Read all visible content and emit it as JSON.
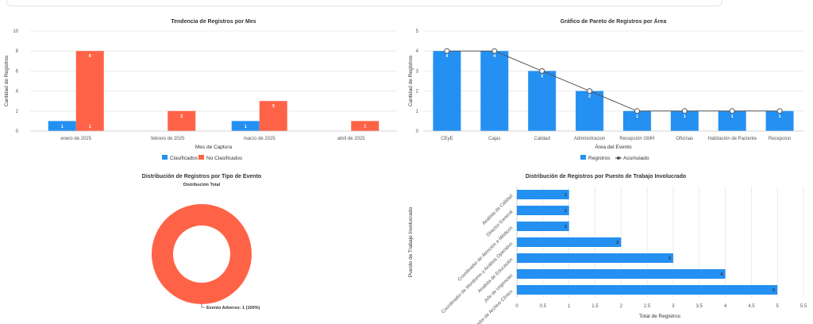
{
  "colors": {
    "clasificados": "#2490f2",
    "no_clasificados": "#ff6347",
    "registros": "#2490f2",
    "acumulado": "#555555",
    "pie": "#ff6347",
    "grid": "#e6e6e6",
    "axis": "#666666"
  },
  "chart_data": [
    {
      "type": "bar",
      "title": "Tendencia de Registros por Mes",
      "xlabel": "Mes de Captura",
      "ylabel": "Cantidad de Registros",
      "ylim": [
        0,
        10
      ],
      "yticks": [
        "0",
        "2",
        "4",
        "6",
        "8",
        "10"
      ],
      "categories": [
        "enero de 2025",
        "febrero de 2025",
        "marzo de 2025",
        "abril de 2025"
      ],
      "series": [
        {
          "name": "Clasificados",
          "values": [
            1,
            0,
            1,
            0
          ]
        },
        {
          "name": "No Clasificados",
          "values": [
            8,
            2,
            3,
            1
          ]
        }
      ],
      "legend": "bottom"
    },
    {
      "type": "bar",
      "title": "Gráfico de Pareto de Registros por Área",
      "xlabel": "Área del Evento",
      "ylabel": "Cantidad de Registros",
      "ylim": [
        0,
        5
      ],
      "yticks": [
        "0",
        "1",
        "2",
        "3",
        "4",
        "5"
      ],
      "categories": [
        "CEyE",
        "Cajas",
        "Calidad",
        "Administracion",
        "Recepción GMH",
        "Oficinas",
        "Habitación de Paciente",
        "Recepcion"
      ],
      "series": [
        {
          "name": "Registros",
          "values": [
            4,
            4,
            3,
            2,
            1,
            1,
            1,
            1
          ]
        },
        {
          "name": "Acumulado",
          "type": "line",
          "values": [
            4,
            4,
            3,
            2,
            1,
            1,
            1,
            1
          ]
        }
      ],
      "legend": "bottom"
    },
    {
      "type": "pie",
      "title": "Distribución de Registros por Tipo de Evento",
      "subtitle": "Distribución Total",
      "slices": [
        {
          "label": "Evento Adverso: 1 (100%)",
          "value": 1
        }
      ]
    },
    {
      "type": "bar",
      "orientation": "horizontal",
      "title": "Distribución de Registros por Puesto de Trabajo Involucrado",
      "xlabel": "Total de Registros",
      "ylabel": "Puesto de Trabajo Involucrado",
      "xlim": [
        0,
        5.5
      ],
      "xticks": [
        "0",
        "0.5",
        "1",
        "1.5",
        "2",
        "2.5",
        "3",
        "3.5",
        "4",
        "4.5",
        "5",
        "5.5"
      ],
      "categories": [
        "Analista de Calidad",
        "Director General",
        "Coordinador de Atención a Médicos",
        "Coordinador de Monitoreo y Análisis Operativo",
        "Analista de Educación",
        "Jefe de Urgencias",
        "Coordinador de Archivo Clínico"
      ],
      "values": [
        1,
        1,
        1,
        2,
        3,
        4,
        5
      ]
    }
  ]
}
